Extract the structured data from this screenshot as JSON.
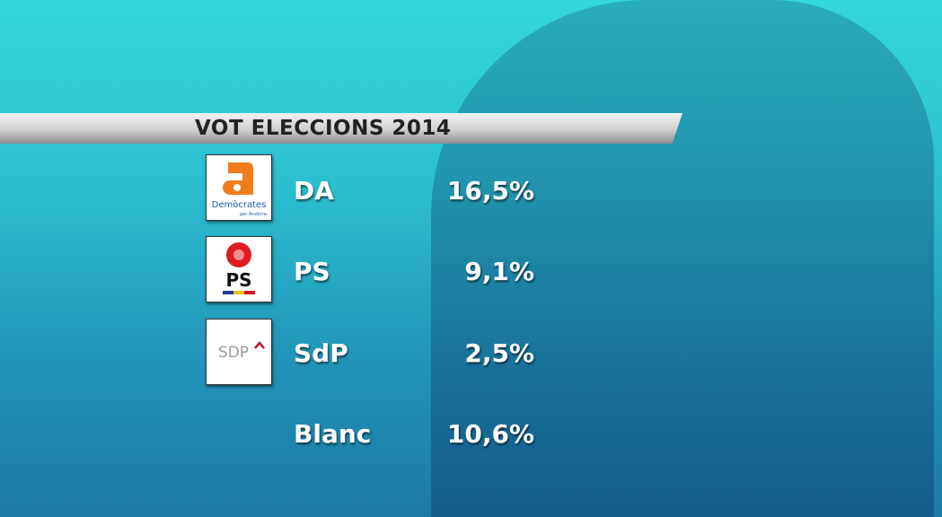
{
  "header": {
    "title": "VOT ELECCIONS 2014"
  },
  "rows": [
    {
      "party": "DA",
      "result": "16,5%",
      "logo_text": "Demòcrates",
      "logo_subtext": "per Andorra"
    },
    {
      "party": "PS",
      "result": "9,1%",
      "logo_text": "PS"
    },
    {
      "party": "SdP",
      "result": "2,5%",
      "logo_text": "SDP"
    },
    {
      "party": "Blanc",
      "result": "10,6%"
    }
  ]
}
